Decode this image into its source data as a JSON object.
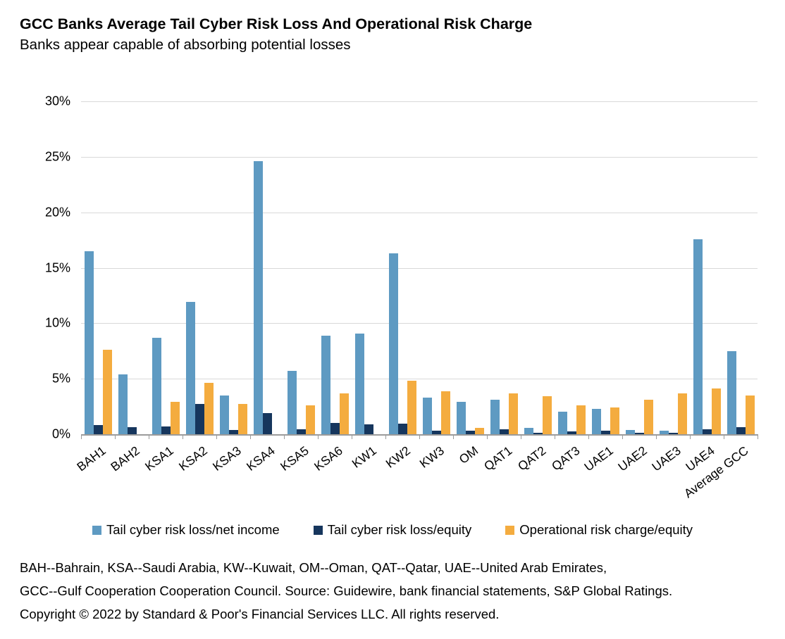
{
  "header": {
    "title": "GCC Banks Average Tail Cyber Risk Loss And Operational Risk Charge",
    "subtitle": "Banks appear capable of absorbing potential losses"
  },
  "chart_data": {
    "type": "bar",
    "title": "GCC Banks Average Tail Cyber Risk Loss And Operational Risk Charge",
    "subtitle": "Banks appear capable of absorbing potential losses",
    "categories": [
      "BAH1",
      "BAH2",
      "KSA1",
      "KSA2",
      "KSA3",
      "KSA4",
      "KSA5",
      "KSA6",
      "KW1",
      "KW2",
      "KW3",
      "OM",
      "QAT1",
      "QAT2",
      "QAT3",
      "UAE1",
      "UAE2",
      "UAE3",
      "UAE4",
      "Average GCC"
    ],
    "series": [
      {
        "name": "Tail cyber risk loss/net income",
        "color": "#5E9AC2",
        "values": [
          16.5,
          5.4,
          8.7,
          11.9,
          3.5,
          24.6,
          5.7,
          8.9,
          9.1,
          16.3,
          3.3,
          2.9,
          3.1,
          0.6,
          2.0,
          2.3,
          0.4,
          0.3,
          17.6,
          7.5
        ]
      },
      {
        "name": "Tail cyber risk loss/equity",
        "color": "#16365D",
        "values": [
          0.8,
          0.65,
          0.7,
          2.7,
          0.35,
          1.9,
          0.45,
          1.0,
          0.9,
          0.95,
          0.3,
          0.3,
          0.45,
          0.15,
          0.25,
          0.3,
          0.1,
          0.1,
          0.45,
          0.65
        ]
      },
      {
        "name": "Operational risk charge/equity",
        "color": "#F4AC3F",
        "values": [
          7.6,
          0,
          2.9,
          4.6,
          2.7,
          0,
          2.6,
          3.65,
          0,
          4.8,
          3.9,
          0.55,
          3.7,
          3.45,
          2.6,
          2.4,
          3.1,
          3.7,
          4.1,
          3.5
        ]
      }
    ],
    "xlabel": "",
    "ylabel": "",
    "ylim": [
      0,
      30
    ],
    "yticks": [
      "0%",
      "5%",
      "10%",
      "15%",
      "20%",
      "25%",
      "30%"
    ],
    "grid": true,
    "legend_position": "bottom"
  },
  "footnotes": [
    "BAH--Bahrain, KSA--Saudi Arabia, KW--Kuwait, OM--Oman, QAT--Qatar, UAE--United Arab Emirates,",
    "GCC--Gulf Cooperation Cooperation Council. Source: Guidewire, bank financial statements, S&P Global Ratings.",
    "Copyright © 2022 by Standard & Poor's Financial Services LLC. All rights reserved."
  ],
  "colors": {
    "gridline": "#D9D9D9",
    "axis": "#9B9B9B",
    "text": "#000000",
    "background": "#FFFFFF"
  }
}
